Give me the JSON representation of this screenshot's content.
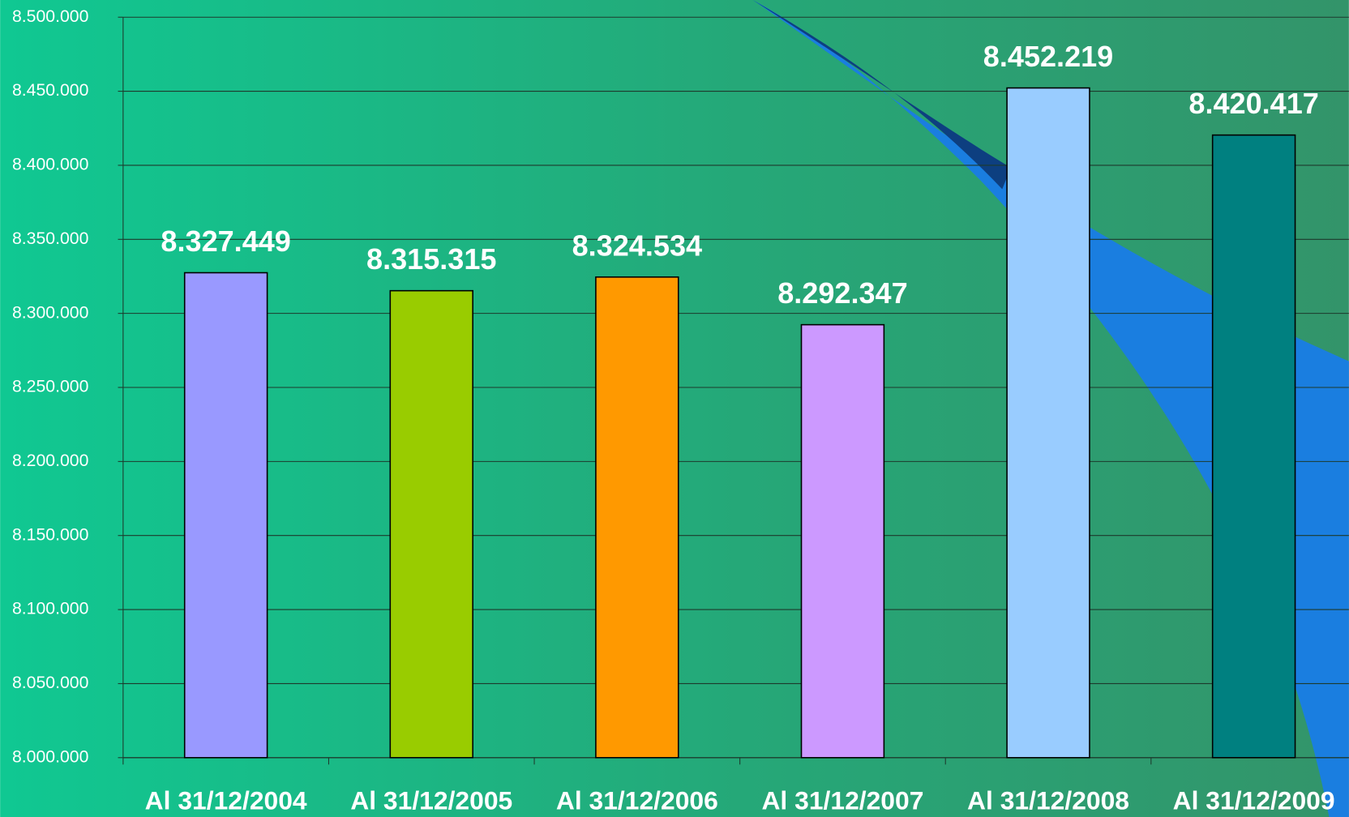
{
  "chart_data": {
    "type": "bar",
    "categories": [
      "Al 31/12/2004",
      "Al 31/12/2005",
      "Al 31/12/2006",
      "Al 31/12/2007",
      "Al 31/12/2008",
      "Al 31/12/2009"
    ],
    "values": [
      8327449,
      8315315,
      8324534,
      8292347,
      8452219,
      8420417
    ],
    "value_labels": [
      "8.327.449",
      "8.315.315",
      "8.324.534",
      "8.292.347",
      "8.452.219",
      "8.420.417"
    ],
    "colors": [
      "#9999ff",
      "#99cc00",
      "#ff9900",
      "#cc99ff",
      "#99ccff",
      "#008080"
    ],
    "ylim": [
      8000000,
      8500000
    ],
    "yticks": [
      {
        "value": 8000000,
        "label": "8.000.000"
      },
      {
        "value": 8050000,
        "label": "8.050.000"
      },
      {
        "value": 8100000,
        "label": "8.100.000"
      },
      {
        "value": 8150000,
        "label": "8.150.000"
      },
      {
        "value": 8200000,
        "label": "8.200.000"
      },
      {
        "value": 8250000,
        "label": "8.250.000"
      },
      {
        "value": 8300000,
        "label": "8.300.000"
      },
      {
        "value": 8350000,
        "label": "8.350.000"
      },
      {
        "value": 8400000,
        "label": "8.400.000"
      },
      {
        "value": 8450000,
        "label": "8.450.000"
      },
      {
        "value": 8500000,
        "label": "8.500.000"
      }
    ],
    "grid": true
  }
}
